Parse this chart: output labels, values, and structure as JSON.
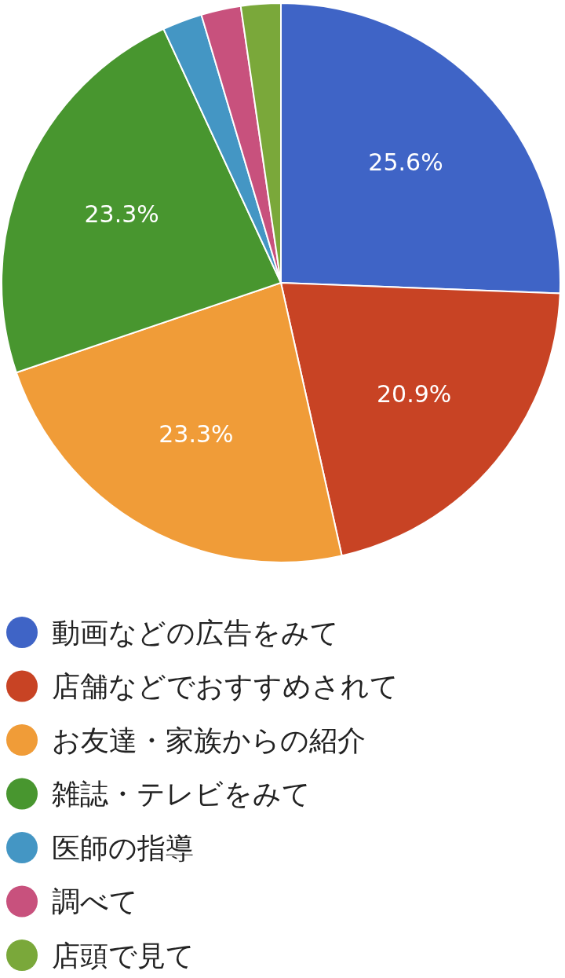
{
  "chart_data": {
    "type": "pie",
    "categories": [
      "動画などの広告をみて",
      "店舗などでおすすめされて",
      "お友達・家族からの紹介",
      "雑誌・テレビをみて",
      "医師の指導",
      "調べて",
      "店頭で見て"
    ],
    "values": [
      25.6,
      20.9,
      23.3,
      23.3,
      2.3,
      2.3,
      2.3
    ],
    "colors": [
      "#3f64c6",
      "#c84324",
      "#f09c38",
      "#48962f",
      "#4496c4",
      "#c8517d",
      "#7aa83a"
    ],
    "value_labels": [
      "25.6%",
      "20.9%",
      "23.3%",
      "23.3%",
      null,
      null,
      null
    ],
    "legend": "bottom"
  }
}
